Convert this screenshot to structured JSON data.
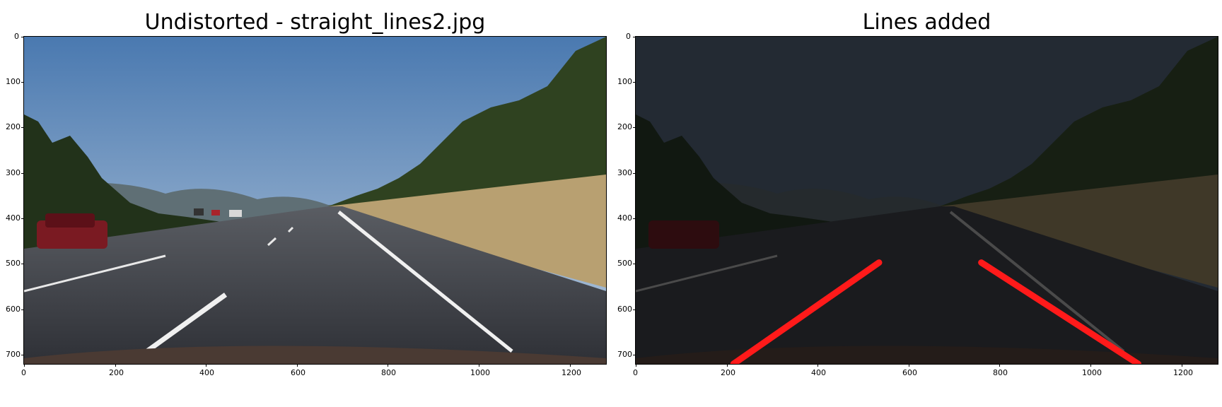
{
  "panels": [
    {
      "title": "Undistorted - straight_lines2.jpg",
      "x_ticks": [
        "0",
        "200",
        "400",
        "600",
        "800",
        "1000",
        "1200"
      ],
      "y_ticks": [
        "0",
        "100",
        "200",
        "300",
        "400",
        "500",
        "600",
        "700"
      ],
      "image": {
        "description_icon": "road-photo",
        "colors": {
          "sky_top": "#5b86b8",
          "sky_bottom": "#a8c0d8",
          "road": "#3c3f45",
          "grass": "#b59a6b",
          "trees": "#263a1a"
        }
      }
    },
    {
      "title": "Lines added",
      "x_ticks": [
        "0",
        "200",
        "400",
        "600",
        "800",
        "1000",
        "1200"
      ],
      "y_ticks": [
        "0",
        "100",
        "200",
        "300",
        "400",
        "500",
        "600",
        "700"
      ],
      "image": {
        "description_icon": "road-photo-darkened",
        "lane_color": "#ff1a1a",
        "lane_lines": [
          {
            "x1": 215,
            "y1": 720,
            "x2": 535,
            "y2": 497
          },
          {
            "x1": 760,
            "y1": 497,
            "x2": 1105,
            "y2": 720
          }
        ],
        "axis_limits": {
          "x": [
            0,
            1280
          ],
          "y": [
            0,
            720
          ]
        }
      }
    }
  ]
}
